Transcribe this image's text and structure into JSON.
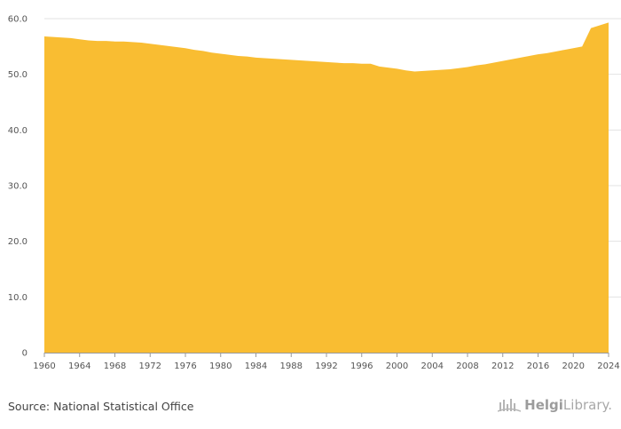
{
  "chart_data": {
    "type": "area",
    "title": "",
    "xlabel": "",
    "ylabel": "",
    "x": [
      1960,
      1961,
      1962,
      1963,
      1964,
      1965,
      1966,
      1967,
      1968,
      1969,
      1970,
      1971,
      1972,
      1973,
      1974,
      1975,
      1976,
      1977,
      1978,
      1979,
      1980,
      1981,
      1982,
      1983,
      1984,
      1985,
      1986,
      1987,
      1988,
      1989,
      1990,
      1991,
      1992,
      1993,
      1994,
      1995,
      1996,
      1997,
      1998,
      1999,
      2000,
      2001,
      2002,
      2003,
      2004,
      2005,
      2006,
      2007,
      2008,
      2009,
      2010,
      2011,
      2012,
      2013,
      2014,
      2015,
      2016,
      2017,
      2018,
      2019,
      2020,
      2021,
      2022,
      2023,
      2024
    ],
    "series": [
      {
        "name": "value",
        "values": [
          56.8,
          56.7,
          56.6,
          56.5,
          56.3,
          56.1,
          56.0,
          56.0,
          55.9,
          55.9,
          55.8,
          55.7,
          55.5,
          55.3,
          55.1,
          54.9,
          54.7,
          54.4,
          54.2,
          53.9,
          53.7,
          53.5,
          53.3,
          53.2,
          53.0,
          52.9,
          52.8,
          52.7,
          52.6,
          52.5,
          52.4,
          52.3,
          52.2,
          52.1,
          52.0,
          52.0,
          51.9,
          51.9,
          51.4,
          51.2,
          51.0,
          50.7,
          50.5,
          50.6,
          50.7,
          50.8,
          50.9,
          51.1,
          51.3,
          51.6,
          51.8,
          52.1,
          52.4,
          52.7,
          53.0,
          53.3,
          53.6,
          53.8,
          54.1,
          54.4,
          54.7,
          55.0,
          58.3,
          58.8,
          59.3
        ]
      }
    ],
    "xlim": [
      1960,
      2024
    ],
    "ylim": [
      0,
      60
    ],
    "x_ticks": [
      "1960",
      "1964",
      "1968",
      "1972",
      "1976",
      "1980",
      "1984",
      "1988",
      "1992",
      "1996",
      "2000",
      "2004",
      "2008",
      "2012",
      "2016",
      "2020",
      "2024"
    ],
    "y_ticks": [
      "0",
      "10.0",
      "20.0",
      "30.0",
      "40.0",
      "50.0",
      "60.0"
    ],
    "grid": true,
    "colors": {
      "fill": "#f9bd32",
      "grid": "#e3e3e3",
      "axis": "#999999",
      "text": "#555555"
    }
  },
  "footer": {
    "source": "Source: National Statistical Office",
    "brand_strong": "Helgi",
    "brand_light": "Library."
  }
}
